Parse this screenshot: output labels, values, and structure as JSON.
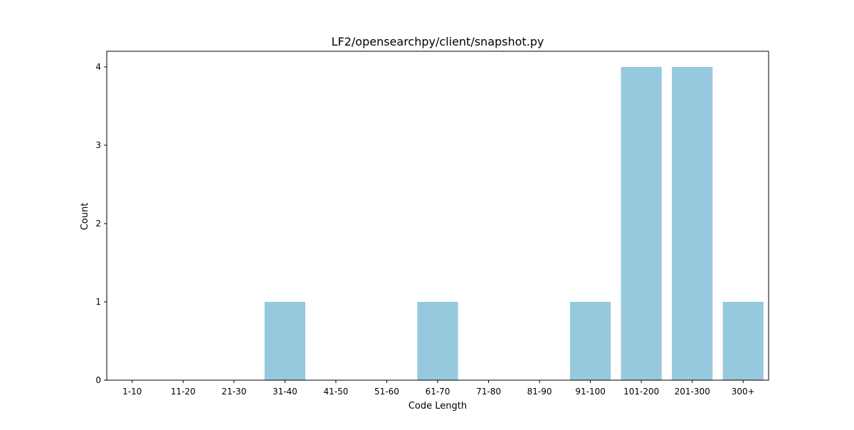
{
  "chart_data": {
    "type": "bar",
    "title": "LF2/opensearchpy/client/snapshot.py",
    "xlabel": "Code Length",
    "ylabel": "Count",
    "categories": [
      "1-10",
      "11-20",
      "21-30",
      "31-40",
      "41-50",
      "51-60",
      "61-70",
      "71-80",
      "81-90",
      "91-100",
      "101-200",
      "201-300",
      "300+"
    ],
    "values": [
      0,
      0,
      0,
      1,
      0,
      0,
      1,
      0,
      0,
      1,
      4,
      4,
      1
    ],
    "yticks": [
      0,
      1,
      2,
      3,
      4
    ],
    "ylim": [
      0,
      4.2
    ],
    "grid": false,
    "bar_color": "#96c9de"
  }
}
